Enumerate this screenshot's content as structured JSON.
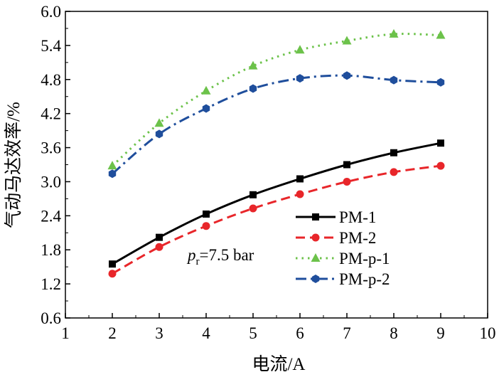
{
  "chart_data": {
    "type": "line",
    "title": "",
    "xlabel": "电流/A",
    "ylabel": "气动马达效率/%",
    "xlim": [
      1,
      10
    ],
    "ylim": [
      0.6,
      6.0
    ],
    "x_ticks": [
      1,
      2,
      3,
      4,
      5,
      6,
      7,
      8,
      9,
      10
    ],
    "x_tick_labels": [
      "1",
      "2",
      "3",
      "4",
      "5",
      "6",
      "7",
      "8",
      "9",
      "10"
    ],
    "y_ticks": [
      0.6,
      1.2,
      1.8,
      2.4,
      3.0,
      3.6,
      4.2,
      4.8,
      5.4,
      6.0
    ],
    "y_tick_labels": [
      "0.6",
      "1.2",
      "1.8",
      "2.4",
      "3.0",
      "3.6",
      "4.2",
      "4.8",
      "5.4",
      "6.0"
    ],
    "grid": false,
    "legend_position": "bottom-right",
    "x": [
      2,
      3,
      4,
      5,
      6,
      7,
      8,
      9
    ],
    "series": [
      {
        "name": "PM-1",
        "values": [
          1.55,
          2.02,
          2.43,
          2.77,
          3.05,
          3.3,
          3.51,
          3.68
        ],
        "color": "#000000",
        "marker": "square",
        "dash": "solid"
      },
      {
        "name": "PM-2",
        "values": [
          1.38,
          1.85,
          2.22,
          2.53,
          2.78,
          3.0,
          3.17,
          3.28
        ],
        "color": "#e8262a",
        "marker": "circle",
        "dash": "dashed"
      },
      {
        "name": "PM-p-1",
        "values": [
          3.28,
          4.03,
          4.6,
          5.04,
          5.32,
          5.48,
          5.6,
          5.58
        ],
        "color": "#6cc24a",
        "marker": "triangle",
        "dash": "dotted"
      },
      {
        "name": "PM-p-2",
        "values": [
          3.14,
          3.84,
          4.29,
          4.64,
          4.82,
          4.87,
          4.79,
          4.75
        ],
        "color": "#1f4e9c",
        "marker": "hexagon",
        "dash": "dashdot"
      }
    ],
    "annotation": {
      "italic": "p",
      "subscript": "r",
      "text": "=7.5 bar"
    }
  }
}
